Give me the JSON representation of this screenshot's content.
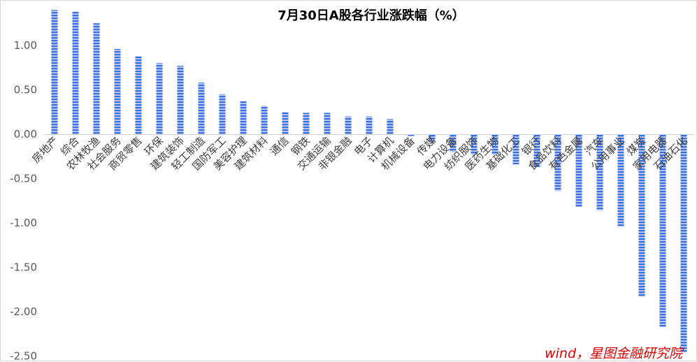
{
  "chart_data": {
    "type": "bar",
    "title": "7月30日A股各行业涨跌幅（%）",
    "xlabel": "",
    "ylabel": "",
    "ylim": [
      -2.5,
      1.5
    ],
    "yticks": [
      "1.00",
      "0.50",
      "0.00",
      "-0.50",
      "-1.00",
      "-1.50",
      "-2.00",
      "-2.50"
    ],
    "grid": false,
    "legend": "none",
    "bar_color": "#3C6FE0",
    "categories": [
      "房地产",
      "综合",
      "农林牧渔",
      "社会服务",
      "商贸零售",
      "环保",
      "建筑装饰",
      "轻工制造",
      "国防军工",
      "美容护理",
      "建筑材料",
      "通信",
      "钢铁",
      "交通运输",
      "非银金融",
      "电子",
      "计算机",
      "机械设备",
      "传媒",
      "电力设备",
      "纺织服饰",
      "医药生物",
      "基础化工",
      "银行",
      "食品饮料",
      "有色金属",
      "汽车",
      "公用事业",
      "煤炭",
      "家用电器",
      "石油石化"
    ],
    "values": [
      1.4,
      1.38,
      1.25,
      0.96,
      0.88,
      0.8,
      0.77,
      0.58,
      0.45,
      0.37,
      0.32,
      0.25,
      0.24,
      0.24,
      0.2,
      0.2,
      0.17,
      -0.02,
      -0.08,
      -0.2,
      -0.23,
      -0.23,
      -0.34,
      -0.37,
      -0.64,
      -0.82,
      -0.86,
      -1.04,
      -1.83,
      -2.17,
      -2.46
    ],
    "source_note": "wind，星图金融研究院"
  }
}
